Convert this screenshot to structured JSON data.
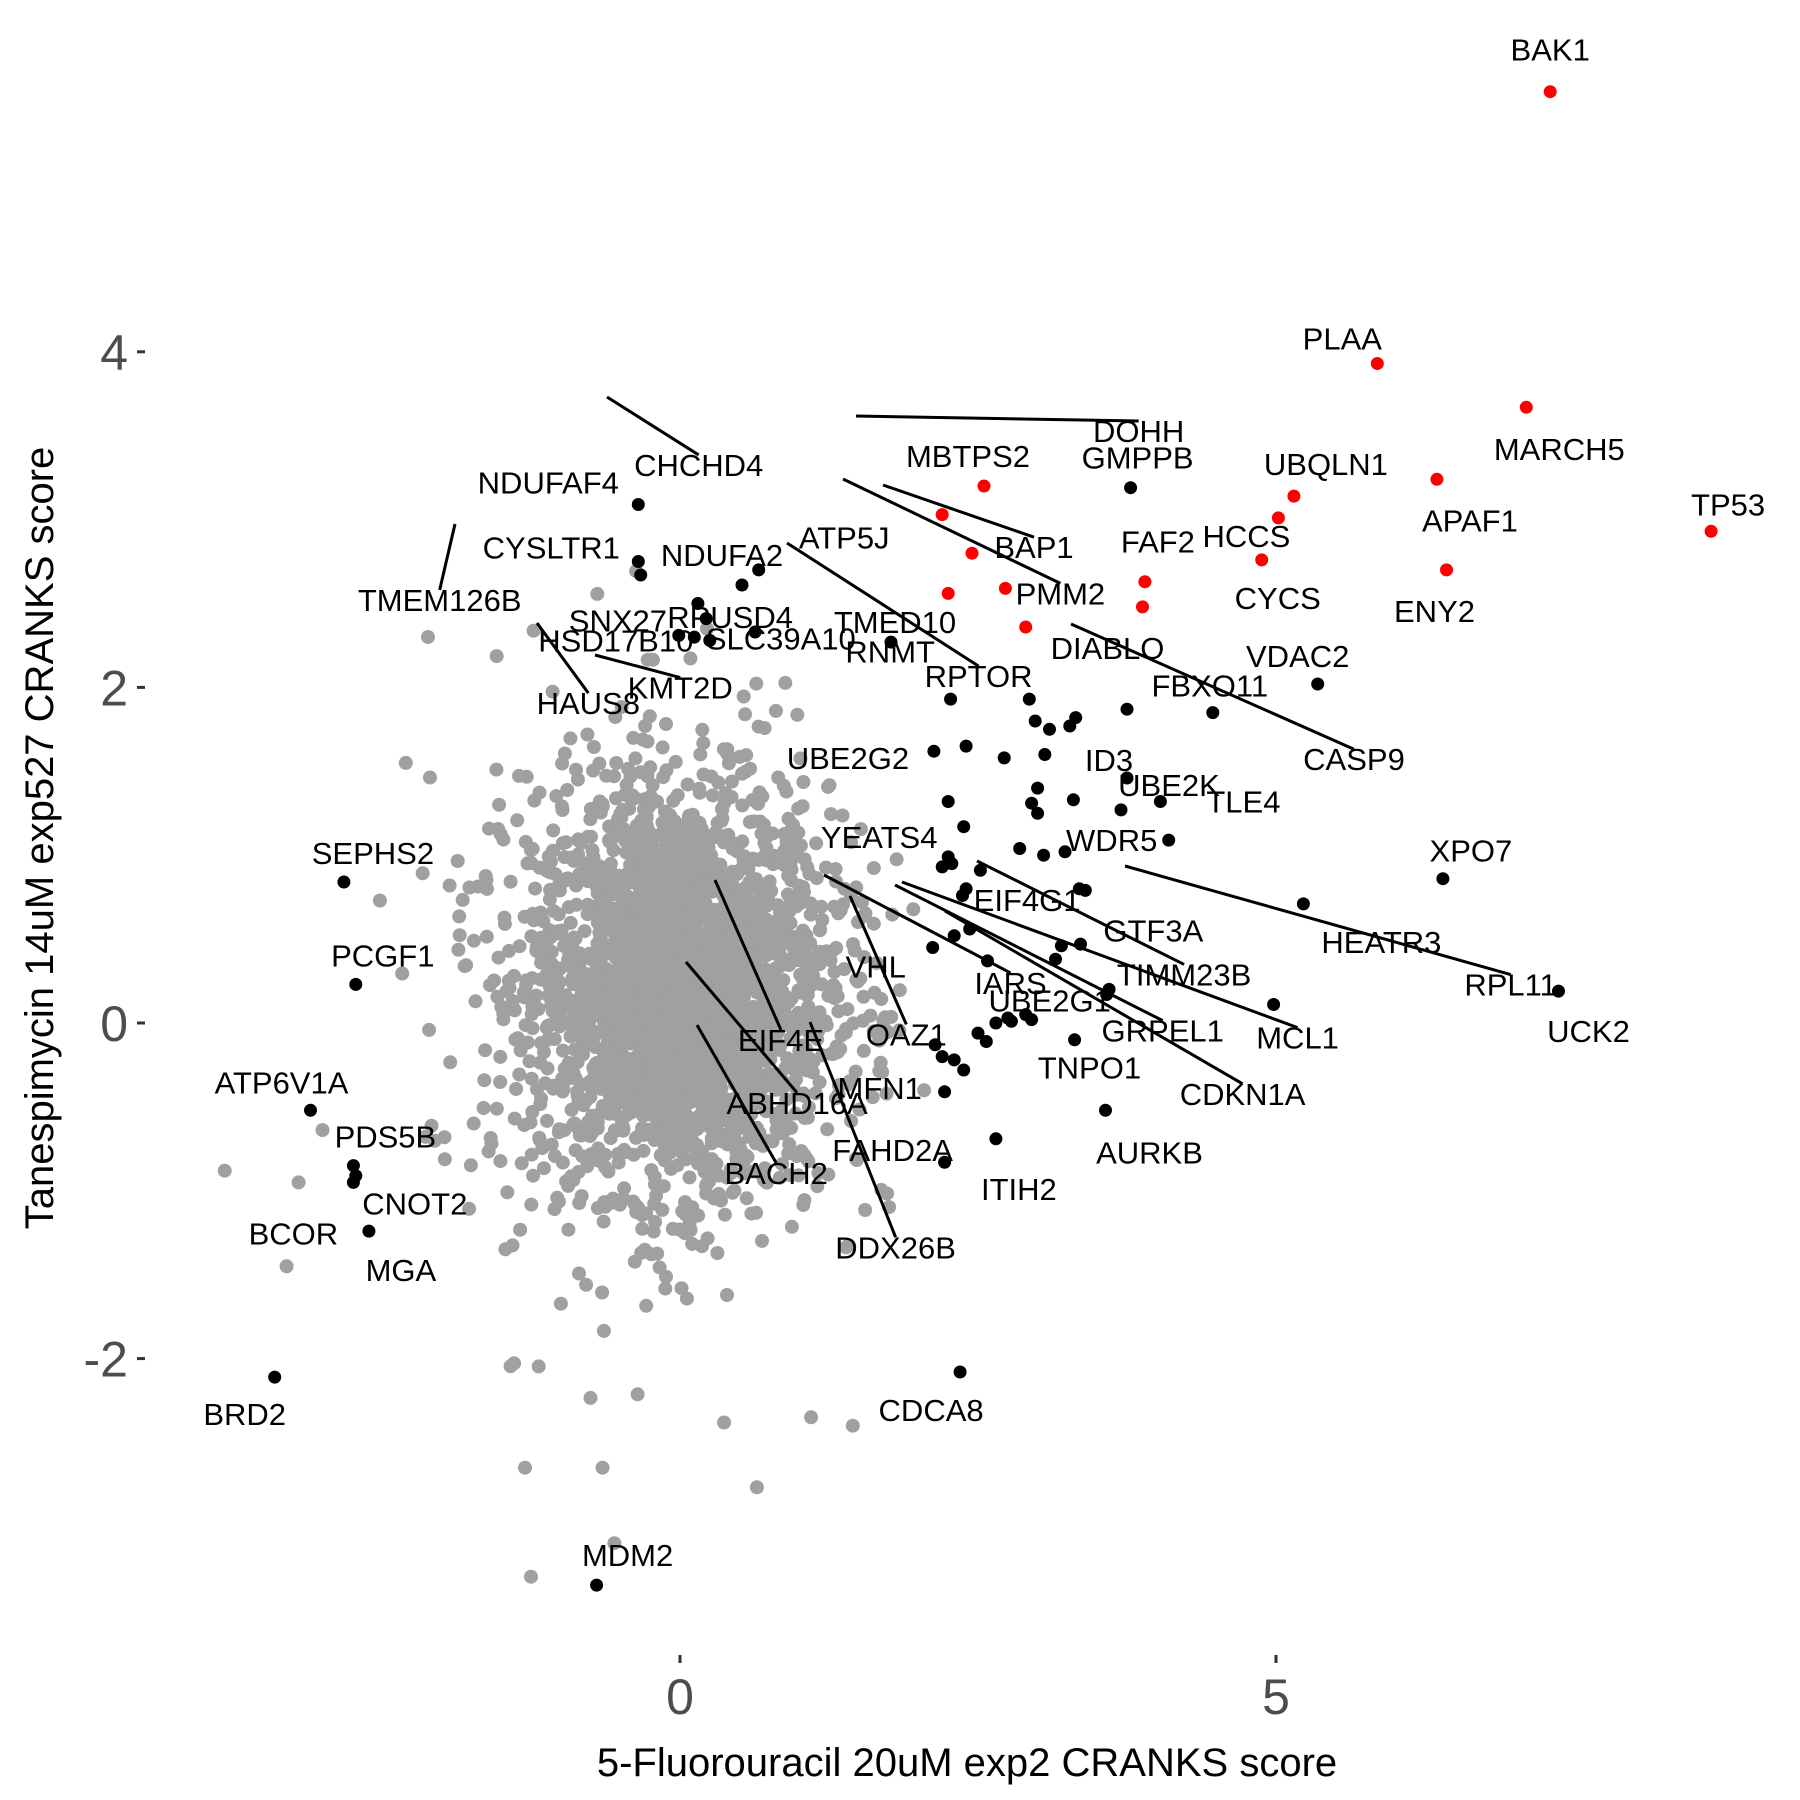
{
  "chart_data": {
    "type": "scatter",
    "xlabel": "5-Fluorouracil 20uM exp2 CRANKS score",
    "ylabel": "Tanespimycin 14uM exp527 CRANKS score",
    "xlim": [
      -5.2,
      9.5
    ],
    "ylim": [
      -3.7,
      5.6
    ],
    "x_ticks": [
      0,
      5
    ],
    "y_ticks": [
      -2,
      0,
      2,
      4
    ],
    "grid": false,
    "legend": "none",
    "colors": {
      "background_genes": "#a0a0a0",
      "highlighted_genes": "#000000",
      "top_hits": "#ff0000",
      "leader_lines": "#000000"
    },
    "labeled_points": [
      {
        "gene": "BAK1",
        "x": 7.3,
        "y": 5.55,
        "color": "red"
      },
      {
        "gene": "PLAA",
        "x": 5.85,
        "y": 3.93,
        "color": "red"
      },
      {
        "gene": "MARCH5",
        "x": 7.1,
        "y": 3.67,
        "color": "red"
      },
      {
        "gene": "TP53",
        "x": 8.65,
        "y": 2.93,
        "color": "red"
      },
      {
        "gene": "UBQLN1",
        "x": 5.15,
        "y": 3.14,
        "color": "red"
      },
      {
        "gene": "HCCS",
        "x": 5.02,
        "y": 3.01,
        "color": "red"
      },
      {
        "gene": "APAF1",
        "x": 6.35,
        "y": 3.24,
        "color": "red"
      },
      {
        "gene": "ENY2",
        "x": 6.43,
        "y": 2.7,
        "color": "red"
      },
      {
        "gene": "CYCS",
        "x": 4.88,
        "y": 2.76,
        "color": "red"
      },
      {
        "gene": "FAF2",
        "x": 3.9,
        "y": 2.63,
        "color": "red"
      },
      {
        "gene": "DIABLO",
        "x": 3.88,
        "y": 2.48,
        "color": "red"
      },
      {
        "gene": "MBTPS2",
        "x": 2.55,
        "y": 3.2,
        "color": "red"
      },
      {
        "gene": "ATP5J",
        "x": 2.2,
        "y": 3.03,
        "color": "red"
      },
      {
        "gene": "BAP1",
        "x": 2.45,
        "y": 2.8,
        "color": "red"
      },
      {
        "gene": "RNMT",
        "x": 2.25,
        "y": 2.56,
        "color": "red"
      },
      {
        "gene": "PMM2",
        "x": 2.73,
        "y": 2.59,
        "color": "red"
      },
      {
        "gene": "DOHH",
        "x": 2.9,
        "y": 2.36,
        "color": "red"
      },
      {
        "gene": "GMPPB",
        "x": 3.78,
        "y": 3.19,
        "color": "black"
      },
      {
        "gene": "VDAC2",
        "x": 5.35,
        "y": 2.02,
        "color": "black"
      },
      {
        "gene": "FBXO11",
        "x": 4.47,
        "y": 1.85,
        "color": "black"
      },
      {
        "gene": "CASP9",
        "x": 3.75,
        "y": 1.87,
        "color": "black"
      },
      {
        "gene": "ID3",
        "x": 3.75,
        "y": 1.46,
        "color": "black"
      },
      {
        "gene": "UBE2K",
        "x": 3.7,
        "y": 1.27,
        "color": "black"
      },
      {
        "gene": "TLE4",
        "x": 4.03,
        "y": 1.32,
        "color": "black"
      },
      {
        "gene": "WDR5",
        "x": 4.1,
        "y": 1.09,
        "color": "black"
      },
      {
        "gene": "GTF3A",
        "x": 3.4,
        "y": 0.79,
        "color": "black"
      },
      {
        "gene": "XPO7",
        "x": 6.4,
        "y": 0.86,
        "color": "black"
      },
      {
        "gene": "HEATR3",
        "x": 5.23,
        "y": 0.71,
        "color": "black"
      },
      {
        "gene": "RPL11",
        "x": 4.98,
        "y": 0.11,
        "color": "black"
      },
      {
        "gene": "UCK2",
        "x": 7.37,
        "y": 0.19,
        "color": "black"
      },
      {
        "gene": "UBE2G1",
        "x": 3.58,
        "y": 0.17,
        "color": "black"
      },
      {
        "gene": "TIMM23B",
        "x": 3.6,
        "y": 0.2,
        "color": "black"
      },
      {
        "gene": "MCL1",
        "x": 2.95,
        "y": 0.02,
        "color": "black"
      },
      {
        "gene": "GRPEL1",
        "x": 2.9,
        "y": 0.05,
        "color": "black"
      },
      {
        "gene": "CDKN1A",
        "x": 3.31,
        "y": -0.1,
        "color": "black"
      },
      {
        "gene": "AURKB",
        "x": 3.57,
        "y": -0.52,
        "color": "black"
      },
      {
        "gene": "TNPO1",
        "x": 2.78,
        "y": 0.01,
        "color": "black"
      },
      {
        "gene": "ITIH2",
        "x": 2.65,
        "y": -0.69,
        "color": "black"
      },
      {
        "gene": "CDCA8",
        "x": 2.35,
        "y": -2.08,
        "color": "black"
      },
      {
        "gene": "DDX26B",
        "x": 2.22,
        "y": -0.83,
        "color": "black"
      },
      {
        "gene": "FAHD2A",
        "x": 2.22,
        "y": -0.41,
        "color": "black"
      },
      {
        "gene": "BACH2",
        "x": 2.3,
        "y": -0.22,
        "color": "black"
      },
      {
        "gene": "ABHD16A",
        "x": 2.14,
        "y": -0.13,
        "color": "black"
      },
      {
        "gene": "MFN1",
        "x": 2.38,
        "y": -0.28,
        "color": "black"
      },
      {
        "gene": "EIF4E",
        "x": 2.5,
        "y": -0.06,
        "color": "black"
      },
      {
        "gene": "OAZ1",
        "x": 2.57,
        "y": -0.11,
        "color": "black"
      },
      {
        "gene": "IARS",
        "x": 2.58,
        "y": 0.37,
        "color": "black"
      },
      {
        "gene": "VHL",
        "x": 2.12,
        "y": 0.45,
        "color": "black"
      },
      {
        "gene": "EIF4G1",
        "x": 2.4,
        "y": 0.8,
        "color": "black"
      },
      {
        "gene": "YEATS4",
        "x": 2.25,
        "y": 0.99,
        "color": "black"
      },
      {
        "gene": "UBE2G2",
        "x": 2.13,
        "y": 1.62,
        "color": "black"
      },
      {
        "gene": "RPTOR",
        "x": 2.27,
        "y": 1.93,
        "color": "black"
      },
      {
        "gene": "TMED10",
        "x": 1.77,
        "y": 2.27,
        "color": "black"
      },
      {
        "gene": "RPUSD4",
        "x": 0.63,
        "y": 2.33,
        "color": "black"
      },
      {
        "gene": "NDUFA2",
        "x": 0.52,
        "y": 2.61,
        "color": "black"
      },
      {
        "gene": "CHCHD4",
        "x": 0.66,
        "y": 2.7,
        "color": "black"
      },
      {
        "gene": "NDUFAF4",
        "x": -0.35,
        "y": 3.09,
        "color": "black"
      },
      {
        "gene": "CYSLTR1",
        "x": -0.35,
        "y": 2.75,
        "color": "black"
      },
      {
        "gene": "TMEM126B",
        "x": -0.33,
        "y": 2.67,
        "color": "black"
      },
      {
        "gene": "SNX27",
        "x": 0.15,
        "y": 2.5,
        "color": "black"
      },
      {
        "gene": "HSD17B10",
        "x": -0.01,
        "y": 2.31,
        "color": "black"
      },
      {
        "gene": "SLC39A10",
        "x": 0.25,
        "y": 2.28,
        "color": "black"
      },
      {
        "gene": "HAUS8",
        "x": 0.12,
        "y": 2.3,
        "color": "black"
      },
      {
        "gene": "KMT2D",
        "x": 0.22,
        "y": 2.41,
        "color": "black"
      },
      {
        "gene": "SEPHS2",
        "x": -2.82,
        "y": 0.84,
        "color": "black"
      },
      {
        "gene": "PCGF1",
        "x": -2.72,
        "y": 0.23,
        "color": "black"
      },
      {
        "gene": "ATP6V1A",
        "x": -3.1,
        "y": -0.52,
        "color": "black"
      },
      {
        "gene": "PDS5B",
        "x": -2.74,
        "y": -0.85,
        "color": "black"
      },
      {
        "gene": "BCOR",
        "x": -2.74,
        "y": -0.95,
        "color": "black"
      },
      {
        "gene": "CNOT2",
        "x": -2.72,
        "y": -0.91,
        "color": "black"
      },
      {
        "gene": "MGA",
        "x": -2.61,
        "y": -1.24,
        "color": "black"
      },
      {
        "gene": "BRD2",
        "x": -3.4,
        "y": -2.11,
        "color": "black"
      },
      {
        "gene": "MDM2",
        "x": -0.7,
        "y": -3.35,
        "color": "black"
      }
    ],
    "unlabeled_highlighted_points": [
      [
        2.93,
        1.93
      ],
      [
        2.98,
        1.8
      ],
      [
        3.1,
        1.75
      ],
      [
        3.27,
        1.77
      ],
      [
        3.32,
        1.82
      ],
      [
        3.06,
        1.6
      ],
      [
        2.72,
        1.58
      ],
      [
        2.4,
        1.65
      ],
      [
        3.0,
        1.4
      ],
      [
        2.95,
        1.31
      ],
      [
        3.3,
        1.33
      ],
      [
        2.25,
        1.32
      ],
      [
        2.38,
        1.17
      ],
      [
        3.0,
        1.25
      ],
      [
        2.85,
        1.04
      ],
      [
        3.05,
        1.0
      ],
      [
        3.23,
        1.02
      ],
      [
        2.2,
        0.93
      ],
      [
        2.28,
        0.95
      ],
      [
        2.52,
        0.91
      ],
      [
        3.35,
        0.8
      ],
      [
        2.37,
        0.76
      ],
      [
        2.3,
        0.52
      ],
      [
        2.43,
        0.56
      ],
      [
        3.2,
        0.46
      ],
      [
        3.36,
        0.47
      ],
      [
        3.15,
        0.38
      ],
      [
        2.65,
        0.0
      ],
      [
        2.75,
        0.03
      ],
      [
        2.2,
        -0.2
      ]
    ],
    "background_points_summary": "thousands of grey points forming a dense cloud centred near x=0, y=0.2"
  }
}
